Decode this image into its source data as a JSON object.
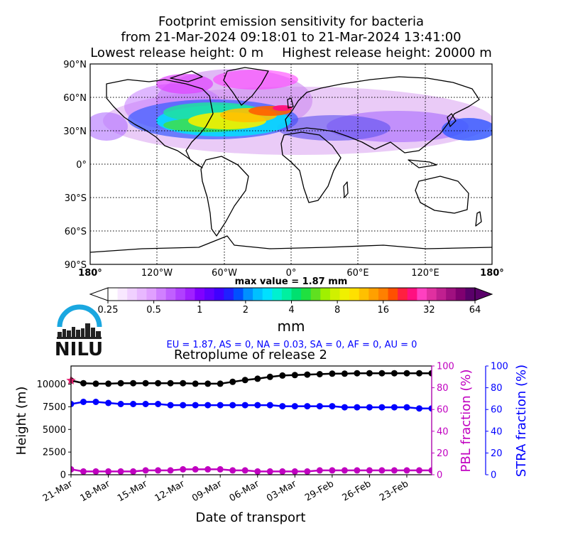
{
  "header": {
    "line1": "Footprint emission sensitivity for bacteria",
    "line2": "from 21-Mar-2024 09:18:01 to 21-Mar-2024 13:41:00",
    "lowest": "Lowest release height: 0 m",
    "highest": "Highest release height: 20000 m"
  },
  "map": {
    "lat_labels": [
      "90°N",
      "60°N",
      "30°N",
      "0°",
      "30°S",
      "60°S",
      "90°S"
    ],
    "lon_labels": [
      "180°",
      "120°W",
      "60°W",
      "0°",
      "60°E",
      "120°E",
      "180°"
    ],
    "lat_range": [
      -90,
      90
    ],
    "lon_range": [
      -180,
      180
    ],
    "grid": true,
    "max_value_label": "max value = 1.87 mm"
  },
  "colorbar": {
    "ticks": [
      "0.25",
      "0.5",
      "1",
      "2",
      "4",
      "8",
      "16",
      "32",
      "64"
    ],
    "unit": "mm"
  },
  "logo": {
    "text": "NILU"
  },
  "region_summary": "EU = 1.87,  AS = 0,  NA = 0.03,  SA = 0,  AF = 0,  AU = 0",
  "colors": {
    "height": "#000000",
    "pbl": "#c000c0",
    "stra": "#0000ff",
    "summary": "#0000ff",
    "release_marker": "#e0206e",
    "logo_blue": "#1aa7e0"
  },
  "chart_data": {
    "type": "line",
    "title": "Retroplume of release 2",
    "xlabel": "Date of transport",
    "ylabel_left": "Height (m)",
    "ylabel_right1": "PBL fraction (%)",
    "ylabel_right2": "STRA fraction (%)",
    "x_ticks": [
      "21-Mar",
      "18-Mar",
      "15-Mar",
      "12-Mar",
      "09-Mar",
      "06-Mar",
      "03-Mar",
      "29-Feb",
      "26-Feb",
      "23-Feb"
    ],
    "x_days_back": [
      0,
      1,
      2,
      3,
      4,
      5,
      6,
      7,
      8,
      9,
      10,
      11,
      12,
      13,
      14,
      15,
      16,
      17,
      18,
      19,
      20,
      21,
      22,
      23,
      24,
      25,
      26,
      27,
      28,
      29
    ],
    "x_range": [
      0,
      29
    ],
    "y_left_ticks": [
      "0",
      "2500",
      "5000",
      "7500",
      "10000"
    ],
    "y_left_range": [
      0,
      12000
    ],
    "y_right_ticks": [
      "0",
      "20",
      "40",
      "60",
      "80",
      "100"
    ],
    "y_right_range": [
      0,
      100
    ],
    "series": [
      {
        "name": "Height (m)",
        "axis": "left",
        "values": [
          10400,
          10100,
          10050,
          10050,
          10100,
          10100,
          10100,
          10100,
          10100,
          10100,
          10050,
          10050,
          10050,
          10250,
          10450,
          10600,
          10800,
          10950,
          11000,
          11050,
          11100,
          11150,
          11150,
          11200,
          11200,
          11200,
          11200,
          11200,
          11200,
          11200
        ]
      },
      {
        "name": "PBL fraction (%)",
        "axis": "right1",
        "values": [
          5,
          3,
          3,
          3,
          3,
          3,
          4,
          4,
          4,
          5,
          5,
          5,
          5,
          4,
          4,
          3,
          3,
          3,
          3,
          3,
          4,
          4,
          4,
          4,
          4,
          4,
          4,
          4,
          4,
          4
        ]
      },
      {
        "name": "STRA fraction (%)",
        "axis": "right2",
        "values": [
          65,
          67,
          67,
          66,
          65,
          65,
          65,
          65,
          64,
          64,
          64,
          64,
          64,
          64,
          64,
          64,
          64,
          63,
          63,
          63,
          63,
          63,
          62,
          62,
          62,
          62,
          62,
          62,
          61,
          61
        ]
      }
    ]
  }
}
